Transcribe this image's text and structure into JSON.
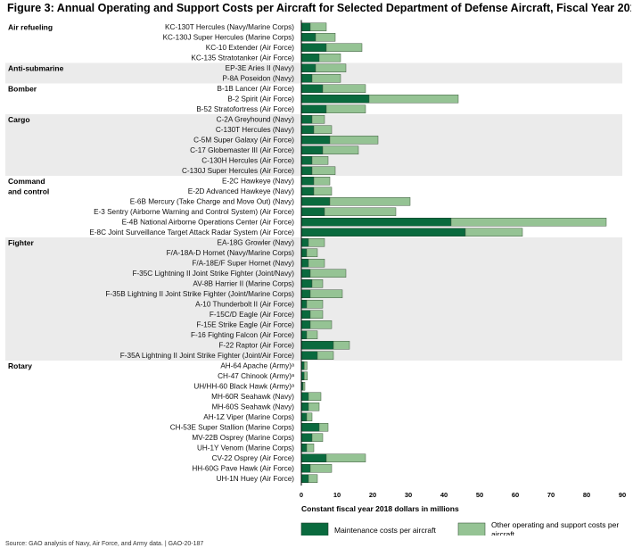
{
  "page": {
    "title": "Figure 3: Annual Operating and Support Costs per Aircraft for Selected Department of Defense Aircraft, Fiscal Year 2018",
    "source_note": "Source: GAO analysis of Navy, Air Force, and Army data. | GAO-20-187"
  },
  "chart_data": {
    "type": "bar",
    "orientation": "horizontal",
    "stacked": true,
    "title": "Figure 3: Annual Operating and Support Costs per Aircraft for Selected Department of Defense Aircraft, Fiscal Year 2018",
    "xlabel": "Constant fiscal year 2018 dollars in millions",
    "xlim": [
      0,
      90
    ],
    "xticks": [
      0,
      10,
      20,
      30,
      40,
      50,
      60,
      70,
      80,
      90
    ],
    "legend_position": "bottom",
    "colors": {
      "maintenance": "#0a6a3e",
      "other": "#95c394",
      "shade": "#ebebeb"
    },
    "series": [
      {
        "key": "maintenance",
        "name": "Maintenance costs per aircraft"
      },
      {
        "key": "other",
        "name": "Other operating and support costs per aircraft"
      }
    ],
    "groups": [
      {
        "label": "Air refueling",
        "items": [
          {
            "name": "KC-130T Hercules (Navy/Marine Corps)",
            "maintenance": 2.5,
            "other": 4.5
          },
          {
            "name": "KC-130J Super Hercules (Marine Corps)",
            "maintenance": 4,
            "other": 5.5
          },
          {
            "name": "KC-10 Extender (Air Force)",
            "maintenance": 7,
            "other": 10
          },
          {
            "name": "KC-135 Stratotanker (Air Force)",
            "maintenance": 5,
            "other": 6
          }
        ]
      },
      {
        "label": "Anti-submarine",
        "items": [
          {
            "name": "EP-3E Aries II (Navy)",
            "maintenance": 4,
            "other": 8.5
          },
          {
            "name": "P-8A Poseidon (Navy)",
            "maintenance": 3,
            "other": 8
          }
        ]
      },
      {
        "label": "Bomber",
        "items": [
          {
            "name": "B-1B Lancer (Air Force)",
            "maintenance": 6,
            "other": 12
          },
          {
            "name": "B-2 Spirit (Air Force)",
            "maintenance": 19,
            "other": 25
          },
          {
            "name": "B-52 Stratofortress (Air Force)",
            "maintenance": 7,
            "other": 11
          }
        ]
      },
      {
        "label": "Cargo",
        "items": [
          {
            "name": "C-2A Greyhound (Navy)",
            "maintenance": 3,
            "other": 3.5
          },
          {
            "name": "C-130T Hercules (Navy)",
            "maintenance": 3.5,
            "other": 5
          },
          {
            "name": "C-5M Super Galaxy (Air Force)",
            "maintenance": 8,
            "other": 13.5
          },
          {
            "name": "C-17 Globemaster III (Air Force)",
            "maintenance": 6,
            "other": 10
          },
          {
            "name": "C-130H Hercules (Air Force)",
            "maintenance": 3,
            "other": 4.5
          },
          {
            "name": "C-130J Super Hercules (Air Force)",
            "maintenance": 3,
            "other": 6.5
          }
        ]
      },
      {
        "label": "Command and control",
        "items": [
          {
            "name": "E-2C Hawkeye (Navy)",
            "maintenance": 3.5,
            "other": 4.5
          },
          {
            "name": "E-2D Advanced Hawkeye (Navy)",
            "maintenance": 3.5,
            "other": 5
          },
          {
            "name": "E-6B Mercury (Take Charge and Move Out) (Navy)",
            "maintenance": 8,
            "other": 22.5
          },
          {
            "name": "E-3 Sentry (Airborne Warning and Control System) (Air Force)",
            "maintenance": 6.5,
            "other": 20
          },
          {
            "name": "E-4B National Airborne Operations Center (Air Force)",
            "maintenance": 42,
            "other": 43.5
          },
          {
            "name": "E-8C Joint Surveillance Target Attack Radar System (Air Force)",
            "maintenance": 46,
            "other": 16
          }
        ]
      },
      {
        "label": "Fighter",
        "items": [
          {
            "name": "EA-18G Growler (Navy)",
            "maintenance": 2,
            "other": 4.5
          },
          {
            "name": "F/A-18A-D Hornet (Navy/Marine Corps)",
            "maintenance": 1.5,
            "other": 3
          },
          {
            "name": "F/A-18E/F Super Hornet (Navy)",
            "maintenance": 2,
            "other": 4.5
          },
          {
            "name": "F-35C Lightning II Joint Strike Fighter (Joint/Navy)",
            "maintenance": 2.5,
            "other": 10
          },
          {
            "name": "AV-8B Harrier II (Marine Corps)",
            "maintenance": 3,
            "other": 3
          },
          {
            "name": "F-35B Lightning II Joint Strike Fighter (Joint/Marine Corps)",
            "maintenance": 2.5,
            "other": 9
          },
          {
            "name": "A-10 Thunderbolt II (Air Force)",
            "maintenance": 1.5,
            "other": 4.5
          },
          {
            "name": "F-15C/D Eagle (Air Force)",
            "maintenance": 2.5,
            "other": 3.5
          },
          {
            "name": "F-15E Strike Eagle (Air Force)",
            "maintenance": 2.5,
            "other": 6
          },
          {
            "name": "F-16 Fighting Falcon (Air Force)",
            "maintenance": 1.5,
            "other": 3
          },
          {
            "name": "F-22 Raptor (Air Force)",
            "maintenance": 9,
            "other": 4.5
          },
          {
            "name": "F-35A Lightning II Joint Strike Fighter (Joint/Air Force)",
            "maintenance": 4.5,
            "other": 4.5
          }
        ]
      },
      {
        "label": "Rotary",
        "items": [
          {
            "name": "AH-64 Apache (Army)ᵃ",
            "maintenance": 0.8,
            "other": 0.8
          },
          {
            "name": "CH-47 Chinook (Army)ᵃ",
            "maintenance": 0.8,
            "other": 0.9
          },
          {
            "name": "UH/HH-60 Black Hawk (Army)ᵃ",
            "maintenance": 0.5,
            "other": 0.5
          },
          {
            "name": "MH-60R Seahawk (Navy)",
            "maintenance": 2,
            "other": 3.5
          },
          {
            "name": "MH-60S Seahawk (Navy)",
            "maintenance": 2,
            "other": 3
          },
          {
            "name": "AH-1Z Viper (Marine Corps)",
            "maintenance": 1.5,
            "other": 1.5
          },
          {
            "name": "CH-53E Super Stallion (Marine Corps)",
            "maintenance": 5,
            "other": 2.5
          },
          {
            "name": "MV-22B Osprey (Marine Corps)",
            "maintenance": 3,
            "other": 3
          },
          {
            "name": "UH-1Y Venom (Marine Corps)",
            "maintenance": 1.5,
            "other": 2
          },
          {
            "name": "CV-22 Osprey (Air Force)",
            "maintenance": 7,
            "other": 11
          },
          {
            "name": "HH-60G Pave Hawk (Air Force)",
            "maintenance": 2.5,
            "other": 6
          },
          {
            "name": "UH-1N Huey (Air Force)",
            "maintenance": 2,
            "other": 2.5
          }
        ]
      }
    ]
  }
}
